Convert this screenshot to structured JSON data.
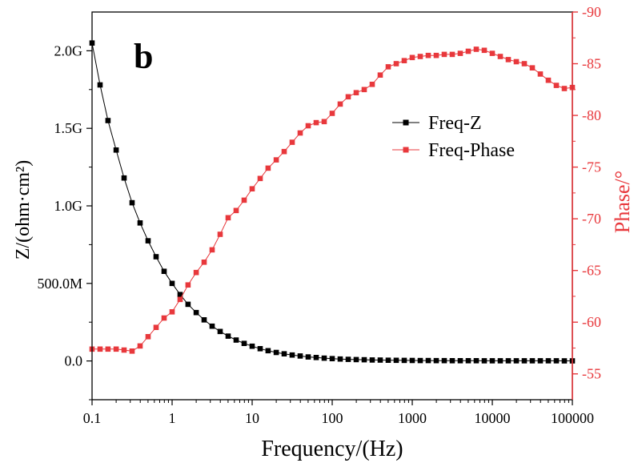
{
  "chart_data": {
    "type": "line",
    "panel_label": "b",
    "xlabel": "Frequency/(Hz)",
    "ylabel_left": "Z/(ohm·cm²)",
    "ylabel_right": "Phase/°",
    "x_scale": "log",
    "xlim": [
      0.1,
      100000
    ],
    "x_ticks": [
      0.1,
      1,
      10,
      100,
      1000,
      10000,
      100000
    ],
    "x_tick_labels": [
      "0.1",
      "1",
      "10",
      "100",
      "1000",
      "10000",
      "100000"
    ],
    "ylim_left": [
      -250000000,
      2250000000
    ],
    "y_left_ticks": [
      0,
      500000000,
      1000000000,
      1500000000,
      2000000000
    ],
    "y_left_tick_labels": [
      "0.0",
      "500.0M",
      "1.0G",
      "1.5G",
      "2.0G"
    ],
    "ylim_right": [
      -52.5,
      -90
    ],
    "y_right_ticks": [
      -55,
      -60,
      -65,
      -70,
      -75,
      -80,
      -85,
      -90
    ],
    "y_right_tick_labels": [
      "-55",
      "-60",
      "-65",
      "-70",
      "-75",
      "-80",
      "-85",
      "-90"
    ],
    "legend": {
      "position": "top-right",
      "entries": [
        "Freq-Z",
        "Freq-Phase"
      ]
    },
    "series": [
      {
        "name": "Freq-Z",
        "axis": "left",
        "color": "#000000",
        "marker": "square",
        "x": [
          0.1,
          0.126,
          0.158,
          0.2,
          0.251,
          0.316,
          0.398,
          0.501,
          0.631,
          0.794,
          1,
          1.26,
          1.58,
          2,
          2.51,
          3.16,
          3.98,
          5.01,
          6.31,
          7.94,
          10,
          12.6,
          15.8,
          20,
          25.1,
          31.6,
          39.8,
          50.1,
          63.1,
          79.4,
          100,
          125.9,
          158.5,
          199.5,
          251.2,
          316.2,
          398.1,
          501.2,
          631,
          794.3,
          1000,
          1259,
          1585,
          1995,
          2512,
          3162,
          3981,
          5012,
          6310,
          7943,
          10000,
          12589,
          15849,
          19953,
          25119,
          31623,
          39811,
          50119,
          63096,
          79433,
          100000
        ],
        "y": [
          2050000000,
          1780000000,
          1550000000,
          1360000000,
          1180000000,
          1020000000,
          890000000,
          775000000,
          672000000,
          578000000,
          500000000,
          428000000,
          365000000,
          312000000,
          265000000,
          224000000,
          190000000,
          160000000,
          135000000,
          113000000,
          95000000,
          79000000,
          66000000,
          55000000,
          46000000,
          38000000,
          32000000,
          26000000,
          22000000,
          18000000,
          15000000,
          12500000,
          10500000,
          9000000,
          7600000,
          6400000,
          5500000,
          4700000,
          4000000,
          3500000,
          3000000,
          2700000,
          2400000,
          2100000,
          1900000,
          1700000,
          1550000,
          1400000,
          1300000,
          1200000,
          1100000,
          1050000,
          1000000,
          950000,
          900000,
          870000,
          840000,
          810000,
          790000,
          770000,
          750000
        ]
      },
      {
        "name": "Freq-Phase",
        "axis": "right",
        "color": "#e8383c",
        "marker": "square",
        "x": [
          0.1,
          0.126,
          0.158,
          0.2,
          0.251,
          0.316,
          0.398,
          0.501,
          0.631,
          0.794,
          1,
          1.26,
          1.58,
          2,
          2.51,
          3.16,
          3.98,
          5.01,
          6.31,
          7.94,
          10,
          12.6,
          15.8,
          20,
          25.1,
          31.6,
          39.8,
          50.1,
          63.1,
          79.4,
          100,
          125.9,
          158.5,
          199.5,
          251.2,
          316.2,
          398.1,
          501.2,
          631,
          794.3,
          1000,
          1259,
          1585,
          1995,
          2512,
          3162,
          3981,
          5012,
          6310,
          7943,
          10000,
          12589,
          15849,
          19953,
          25119,
          31623,
          39811,
          50119,
          63096,
          79433,
          100000
        ],
        "y": [
          -57.4,
          -57.4,
          -57.4,
          -57.4,
          -57.3,
          -57.2,
          -57.7,
          -58.6,
          -59.5,
          -60.4,
          -61.0,
          -62.2,
          -63.6,
          -64.8,
          -65.8,
          -67.0,
          -68.5,
          -70.1,
          -70.8,
          -71.8,
          -72.9,
          -73.9,
          -74.9,
          -75.7,
          -76.5,
          -77.4,
          -78.3,
          -79.0,
          -79.3,
          -79.4,
          -80.2,
          -81.1,
          -81.8,
          -82.2,
          -82.5,
          -83.0,
          -83.9,
          -84.7,
          -85.0,
          -85.3,
          -85.6,
          -85.7,
          -85.8,
          -85.8,
          -85.9,
          -85.9,
          -86.0,
          -86.2,
          -86.4,
          -86.3,
          -86.0,
          -85.7,
          -85.4,
          -85.2,
          -85.0,
          -84.6,
          -84.0,
          -83.4,
          -82.9,
          -82.6,
          -82.7
        ]
      }
    ]
  }
}
